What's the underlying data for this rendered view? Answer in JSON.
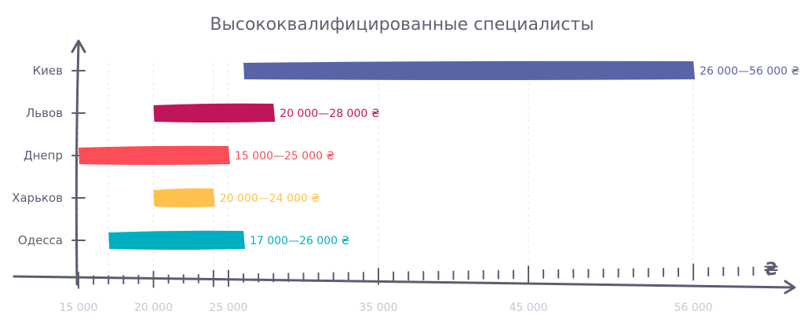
{
  "chart_data": {
    "type": "bar",
    "title": "Высококвалифицированные специалисты",
    "x_unit": "₴",
    "xlim": [
      15000,
      60000
    ],
    "grid": true,
    "x_ticks": [
      {
        "value": 15000,
        "label": "15 000"
      },
      {
        "value": 20000,
        "label": "20 000"
      },
      {
        "value": 24000,
        "label": ""
      },
      {
        "value": 25000,
        "label": "25 000"
      },
      {
        "value": 35000,
        "label": "35 000"
      },
      {
        "value": 45000,
        "label": "45 000"
      },
      {
        "value": 56000,
        "label": "56 000"
      }
    ],
    "series": [
      {
        "category": "Киев",
        "min": 26000,
        "max": 56000,
        "label": "26 000—56 000 ₴",
        "color": "#5a63a5"
      },
      {
        "category": "Львов",
        "min": 20000,
        "max": 28000,
        "label": "20 000—28 000 ₴",
        "color": "#c0155a"
      },
      {
        "category": "Днепр",
        "min": 15000,
        "max": 25000,
        "label": "15 000—25 000 ₴",
        "color": "#fc4d58"
      },
      {
        "category": "Харьков",
        "min": 20000,
        "max": 24000,
        "label": "20 000—24 000 ₴",
        "color": "#ffc14d"
      },
      {
        "category": "Одесса",
        "min": 17000,
        "max": 26000,
        "label": "17 000—26 000 ₴",
        "color": "#00aec2"
      }
    ]
  }
}
